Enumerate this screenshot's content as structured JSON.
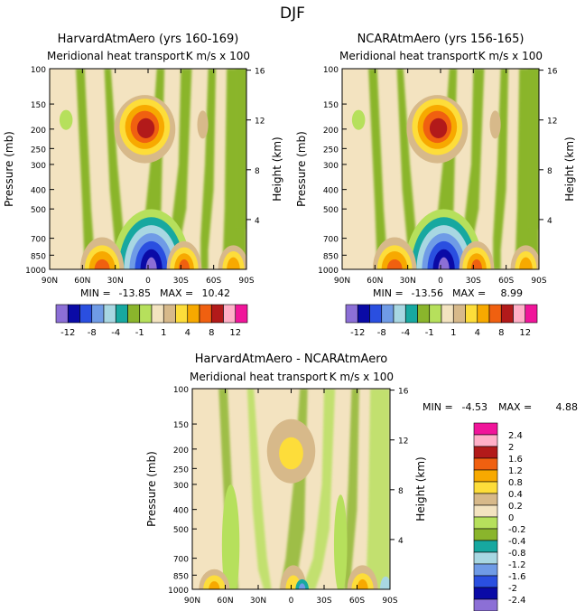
{
  "figure": {
    "title": "DJF"
  },
  "colors": {
    "contour": [
      "#8c6fd6",
      "#0a0aa6",
      "#2a4fe0",
      "#6f9be6",
      "#a8d7e2",
      "#17a8a0",
      "#8ab52c",
      "#b6e05c",
      "#f3e3c0",
      "#d7b98a",
      "#fddd3a",
      "#f7a900",
      "#f06010",
      "#b21a1a",
      "#ffb0c8",
      "#f0159a"
    ]
  },
  "chart_data": [
    {
      "type": "contour",
      "title": "HarvardAtmAero (yrs 160-169)",
      "subtitle": "Meridional heat transport",
      "unit_label": "K m/s x 100",
      "xlabel": "",
      "ylabel": "Pressure (mb)",
      "y2label": "Height (km)",
      "x_ticks": [
        "90N",
        "60N",
        "30N",
        "0",
        "30S",
        "60S",
        "90S"
      ],
      "y_ticks": [
        "100",
        "150",
        "200",
        "250",
        "300",
        "400",
        "500",
        "700",
        "850",
        "1000"
      ],
      "y2_ticks": [
        "16",
        "12",
        "8",
        "4"
      ],
      "min_label": "MIN =",
      "min": "-13.85",
      "max_label": "MAX =",
      "max": "10.42",
      "levels": [
        -12,
        -10,
        -8,
        -6,
        -4,
        -2,
        -1,
        0,
        1,
        2,
        4,
        6,
        8,
        10,
        12
      ],
      "features": [
        {
          "x": -2,
          "y": 200,
          "value": 10.42
        },
        {
          "x": -5,
          "y": 980,
          "value": -13.85
        },
        {
          "x": -25,
          "y": 990,
          "value": 6
        },
        {
          "x": 28,
          "y": 990,
          "value": 4
        },
        {
          "x": 80,
          "y": 990,
          "value": 4
        }
      ]
    },
    {
      "type": "contour",
      "title": "NCARAtmAero (yrs 156-165)",
      "subtitle": "Meridional heat transport",
      "unit_label": "K m/s x 100",
      "xlabel": "",
      "ylabel": "Pressure (mb)",
      "y2label": "Height (km)",
      "x_ticks": [
        "90N",
        "60N",
        "30N",
        "0",
        "30S",
        "60S",
        "90S"
      ],
      "y_ticks": [
        "100",
        "150",
        "200",
        "250",
        "300",
        "400",
        "500",
        "700",
        "850",
        "1000"
      ],
      "y2_ticks": [
        "16",
        "12",
        "8",
        "4"
      ],
      "min_label": "MIN =",
      "min": "-13.56",
      "max_label": "MAX =",
      "max": "8.99",
      "levels": [
        -12,
        -10,
        -8,
        -6,
        -4,
        -2,
        -1,
        0,
        1,
        2,
        4,
        6,
        8,
        10,
        12
      ],
      "features": [
        {
          "x": -2,
          "y": 200,
          "value": 8.99
        },
        {
          "x": -5,
          "y": 980,
          "value": -13.56
        },
        {
          "x": -25,
          "y": 990,
          "value": 5
        },
        {
          "x": 28,
          "y": 990,
          "value": 3
        },
        {
          "x": 80,
          "y": 990,
          "value": 3
        }
      ]
    },
    {
      "type": "contour",
      "title": "HarvardAtmAero - NCARAtmAero",
      "subtitle": "Meridional heat transport",
      "unit_label": "K m/s x 100",
      "xlabel": "",
      "ylabel": "Pressure (mb)",
      "y2label": "Height (km)",
      "x_ticks": [
        "90N",
        "60N",
        "30N",
        "0",
        "30S",
        "60S",
        "90S"
      ],
      "y_ticks": [
        "100",
        "150",
        "200",
        "250",
        "300",
        "400",
        "500",
        "700",
        "850",
        "1000"
      ],
      "y2_ticks": [
        "16",
        "12",
        "8",
        "4"
      ],
      "min_label": "MIN =",
      "min": "-4.53",
      "max_label": "MAX =",
      "max": "4.88",
      "levels": [
        -2.4,
        -2,
        -1.6,
        -1.2,
        -0.8,
        -0.4,
        -0.2,
        0,
        0.2,
        0.4,
        0.8,
        1.2,
        1.6,
        2,
        2.4
      ],
      "features": [
        {
          "x": 0,
          "y": 200,
          "value": 0.6
        },
        {
          "x": -20,
          "y": 990,
          "value": 0.8
        },
        {
          "x": 75,
          "y": 990,
          "value": 0.8
        }
      ]
    }
  ],
  "colorbars": [
    {
      "labels": [
        "-12",
        "-8",
        "-4",
        "-1",
        "1",
        "4",
        "8",
        "12"
      ]
    },
    {
      "labels": [
        "-12",
        "-8",
        "-4",
        "-1",
        "1",
        "4",
        "8",
        "12"
      ]
    },
    {
      "labels": [
        "2.4",
        "2",
        "1.6",
        "1.2",
        "0.8",
        "0.4",
        "0.2",
        "0",
        "-0.2",
        "-0.4",
        "-0.8",
        "-1.2",
        "-1.6",
        "-2",
        "-2.4"
      ]
    }
  ]
}
